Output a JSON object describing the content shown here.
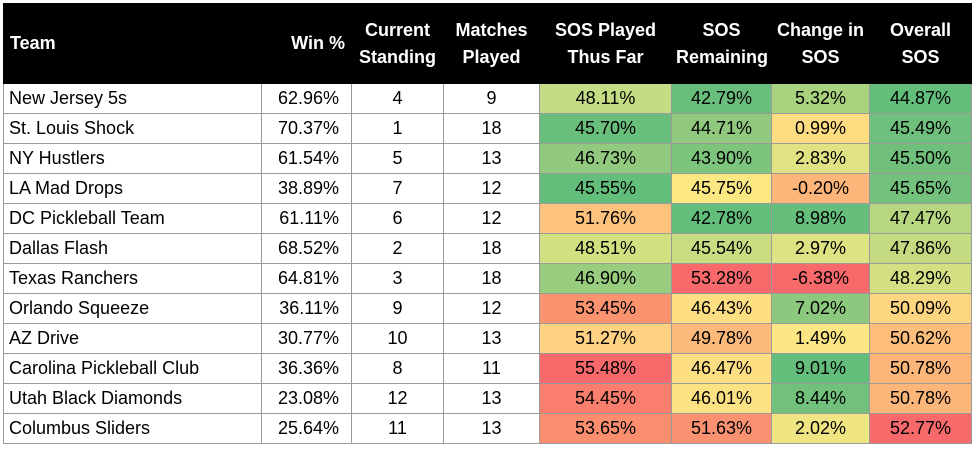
{
  "headers": {
    "team": "Team",
    "win": "Win %",
    "standing": [
      "Current",
      "Standing"
    ],
    "played": [
      "Matches",
      "Played"
    ],
    "sos_played": [
      "SOS Played",
      "Thus Far"
    ],
    "sos_remaining": [
      "SOS",
      "Remaining"
    ],
    "change": [
      "Change in",
      "SOS"
    ],
    "overall": [
      "Overall",
      "SOS"
    ]
  },
  "rows": [
    {
      "team": "New Jersey 5s",
      "win": "62.96%",
      "standing": "4",
      "played": "9",
      "sos_played": "48.11%",
      "sos_played_color": "#c4dd84",
      "sos_remaining": "42.79%",
      "sos_remaining_color": "#6abe7b",
      "change": "5.32%",
      "change_color": "#a9d27f",
      "overall": "44.87%",
      "overall_color": "#63be7b"
    },
    {
      "team": "St. Louis Shock",
      "win": "70.37%",
      "standing": "1",
      "played": "18",
      "sos_played": "45.70%",
      "sos_played_color": "#6abe7b",
      "sos_remaining": "44.71%",
      "sos_remaining_color": "#90c97e",
      "change": "0.99%",
      "change_color": "#fedc81",
      "overall": "45.49%",
      "overall_color": "#6fc07c"
    },
    {
      "team": "NY Hustlers",
      "win": "61.54%",
      "standing": "5",
      "played": "13",
      "sos_played": "46.73%",
      "sos_played_color": "#91ca7e",
      "sos_remaining": "43.90%",
      "sos_remaining_color": "#7dc47d",
      "change": "2.83%",
      "change_color": "#e0e283",
      "overall": "45.50%",
      "overall_color": "#70c07c"
    },
    {
      "team": "LA Mad Drops",
      "win": "38.89%",
      "standing": "7",
      "played": "12",
      "sos_played": "45.55%",
      "sos_played_color": "#63be7b",
      "sos_remaining": "45.75%",
      "sos_remaining_color": "#fbe883",
      "change": "-0.20%",
      "change_color": "#fdb579",
      "overall": "45.65%",
      "overall_color": "#73c17c"
    },
    {
      "team": "DC Pickleball Team",
      "win": "61.11%",
      "standing": "6",
      "played": "12",
      "sos_played": "51.76%",
      "sos_played_color": "#fdc27c",
      "sos_remaining": "42.78%",
      "sos_remaining_color": "#63be7b",
      "change": "8.98%",
      "change_color": "#65be7b",
      "overall": "47.47%",
      "overall_color": "#b6d680"
    },
    {
      "team": "Dallas Flash",
      "win": "68.52%",
      "standing": "2",
      "played": "18",
      "sos_played": "48.51%",
      "sos_played_color": "#d3e082",
      "sos_remaining": "45.54%",
      "sos_remaining_color": "#c8dd82",
      "change": "2.97%",
      "change_color": "#dde283",
      "overall": "47.86%",
      "overall_color": "#c3da81"
    },
    {
      "team": "Texas Ranchers",
      "win": "64.81%",
      "standing": "3",
      "played": "18",
      "sos_played": "46.90%",
      "sos_played_color": "#98cc7e",
      "sos_remaining": "53.28%",
      "sos_remaining_color": "#f8696b",
      "change": "-6.38%",
      "change_color": "#f8696b",
      "overall": "48.29%",
      "overall_color": "#d3df82"
    },
    {
      "team": "Orlando Squeeze",
      "win": "36.11%",
      "standing": "9",
      "played": "12",
      "sos_played": "53.45%",
      "sos_played_color": "#f99370",
      "sos_remaining": "46.43%",
      "sos_remaining_color": "#fede82",
      "change": "7.02%",
      "change_color": "#8cc97e",
      "overall": "50.09%",
      "overall_color": "#fed580"
    },
    {
      "team": "AZ Drive",
      "win": "30.77%",
      "standing": "10",
      "played": "13",
      "sos_played": "51.27%",
      "sos_played_color": "#fed280",
      "sos_remaining": "49.78%",
      "sos_remaining_color": "#fcb97a",
      "change": "1.49%",
      "change_color": "#fbe683",
      "overall": "50.62%",
      "overall_color": "#fdbd7b"
    },
    {
      "team": "Carolina Pickleball Club",
      "win": "36.36%",
      "standing": "8",
      "played": "11",
      "sos_played": "55.48%",
      "sos_played_color": "#f8696b",
      "sos_remaining": "46.47%",
      "sos_remaining_color": "#fede82",
      "change": "9.01%",
      "change_color": "#63be7b",
      "overall": "50.78%",
      "overall_color": "#fcb67a"
    },
    {
      "team": "Utah Black Diamonds",
      "win": "23.08%",
      "standing": "12",
      "played": "13",
      "sos_played": "54.45%",
      "sos_played_color": "#f97e6e",
      "sos_remaining": "46.01%",
      "sos_remaining_color": "#fde283",
      "change": "8.44%",
      "change_color": "#71c17c",
      "overall": "50.78%",
      "overall_color": "#fcb67a"
    },
    {
      "team": "Columbus Sliders",
      "win": "25.64%",
      "standing": "11",
      "played": "13",
      "sos_played": "53.65%",
      "sos_played_color": "#fa8e6f",
      "sos_remaining": "51.63%",
      "sos_remaining_color": "#fa9271",
      "change": "2.02%",
      "change_color": "#f1e583",
      "overall": "52.77%",
      "overall_color": "#f8696b"
    }
  ]
}
